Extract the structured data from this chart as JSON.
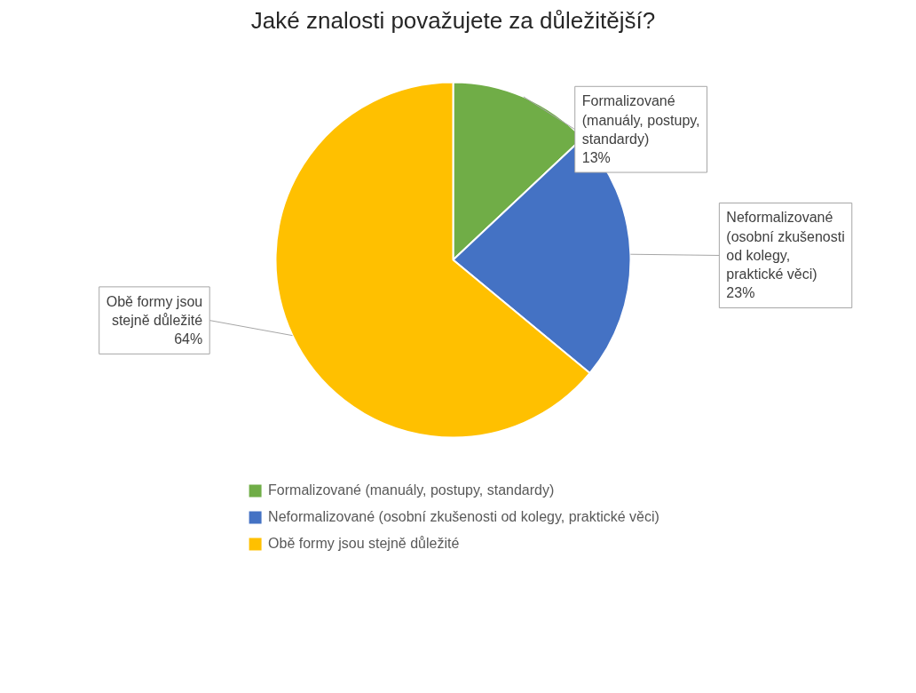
{
  "chart_data": {
    "type": "pie",
    "title": "Jaké znalosti považujete za důležitější?",
    "categories": [
      "Formalizované (manuály, postupy, standardy)",
      "Neformalizované (osobní zkušenosti od kolegy, praktické věci)",
      "Obě formy jsou stejně důležité"
    ],
    "values": [
      13,
      23,
      64
    ],
    "value_labels": [
      "13%",
      "23%",
      "64%"
    ],
    "colors": [
      "#70ad47",
      "#4472c4",
      "#ffc000"
    ],
    "legend": "bottom"
  }
}
